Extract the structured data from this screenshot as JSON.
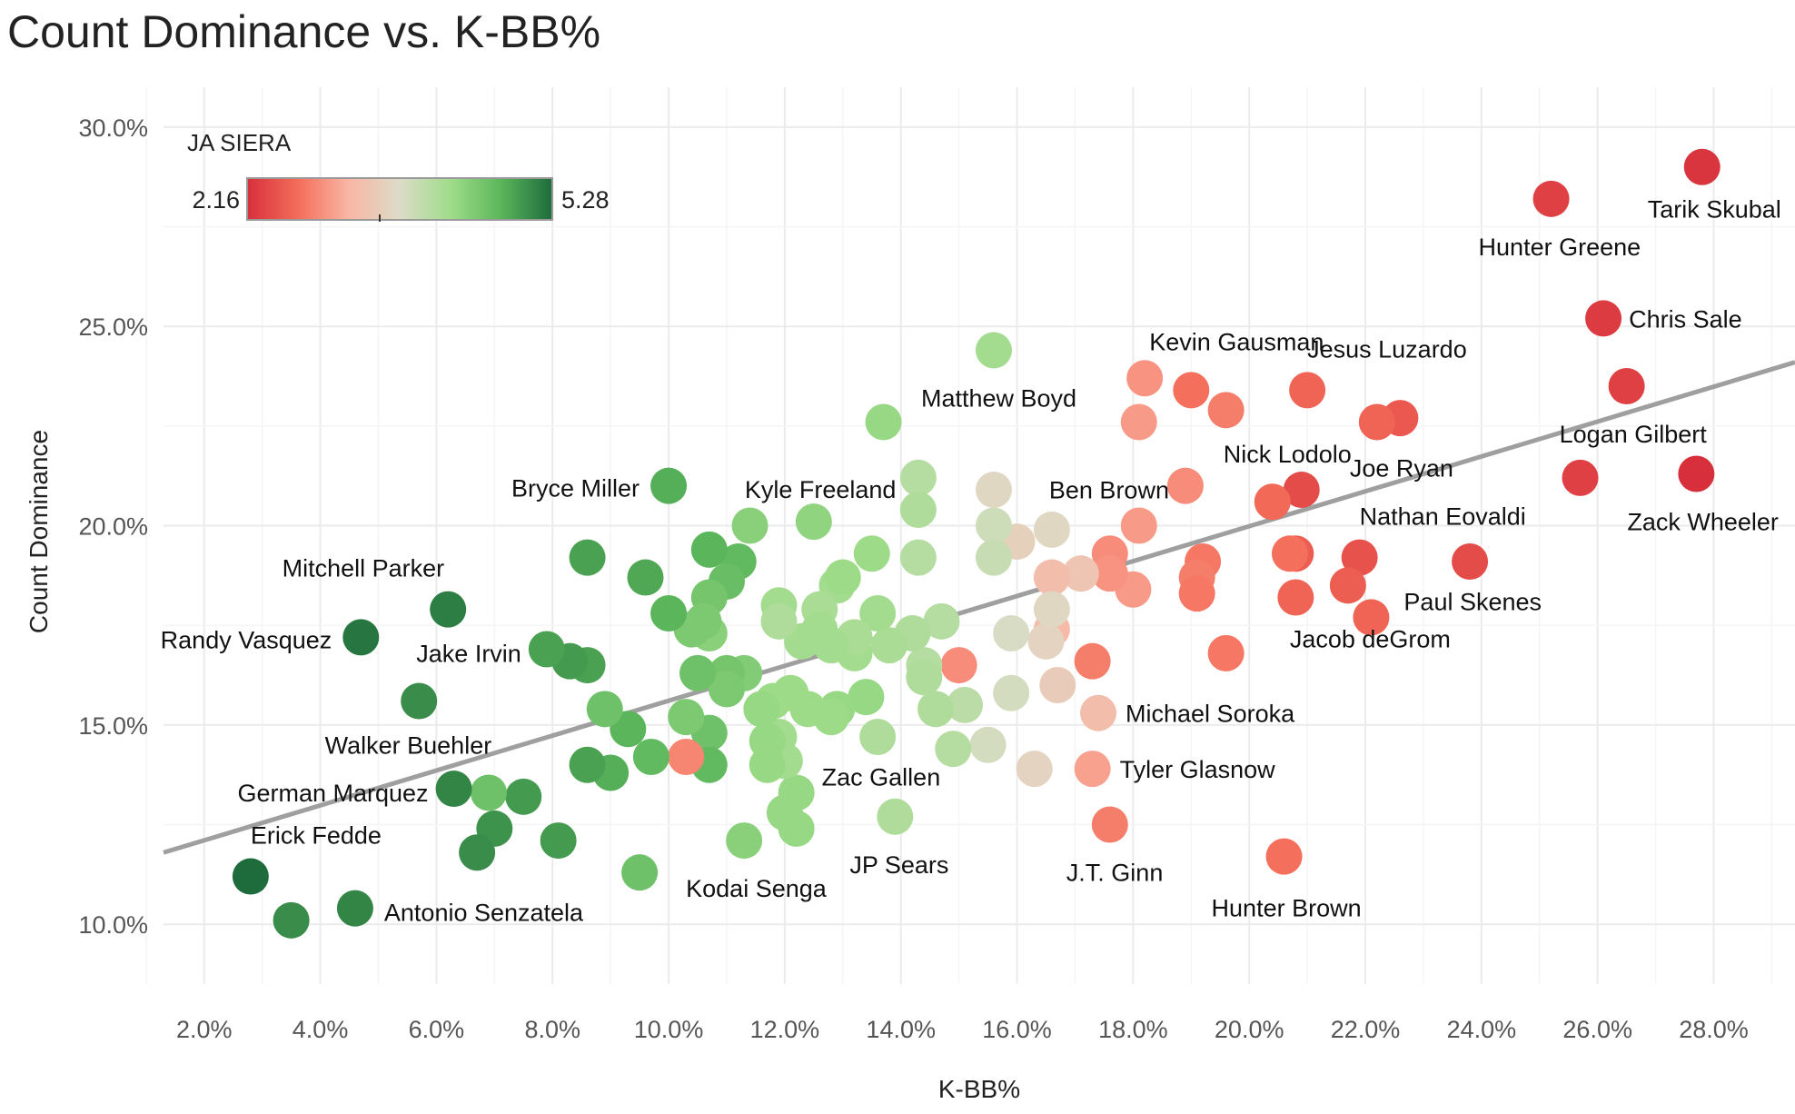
{
  "chart_data": {
    "type": "scatter",
    "title": "Count Dominance vs. K-BB%",
    "xlabel": "K-BB%",
    "ylabel": "Count Dominance",
    "xlim": [
      1.3,
      29.4
    ],
    "ylim": [
      8.5,
      31.0
    ],
    "x_ticks": [
      2,
      4,
      6,
      8,
      10,
      12,
      14,
      16,
      18,
      20,
      22,
      24,
      26,
      28
    ],
    "y_ticks": [
      10,
      15,
      20,
      25,
      30
    ],
    "x_tick_labels": [
      "2.0%",
      "4.0%",
      "6.0%",
      "8.0%",
      "10.0%",
      "12.0%",
      "14.0%",
      "16.0%",
      "18.0%",
      "20.0%",
      "22.0%",
      "24.0%",
      "26.0%",
      "28.0%"
    ],
    "y_tick_labels": [
      "10.0%",
      "15.0%",
      "20.0%",
      "25.0%",
      "30.0%"
    ],
    "grid": true,
    "trendline": {
      "type": "linear",
      "x": [
        1.3,
        29.4
      ],
      "y": [
        11.8,
        24.1
      ],
      "color": "#9a9a9a"
    },
    "color_scale": {
      "title": "JA SIERA",
      "min": 2.16,
      "max": 5.28,
      "min_label": "2.16",
      "max_label": "5.28",
      "stops": [
        "#d7303c",
        "#f46d5a",
        "#f9b6a4",
        "#dcdcc8",
        "#9fdc8a",
        "#5ab55a",
        "#1e6b3c"
      ],
      "legend_position": "top-left"
    },
    "points": [
      {
        "x": 27.8,
        "y": 29.0,
        "siera": 2.2,
        "label": "Tarik Skubal"
      },
      {
        "x": 25.2,
        "y": 28.2,
        "siera": 2.3,
        "label": "Hunter Greene"
      },
      {
        "x": 26.1,
        "y": 25.2,
        "siera": 2.25,
        "label": "Chris Sale"
      },
      {
        "x": 26.5,
        "y": 23.5,
        "siera": 2.3,
        "label": "Logan Gilbert"
      },
      {
        "x": 25.7,
        "y": 21.2,
        "siera": 2.3,
        "label": ""
      },
      {
        "x": 27.7,
        "y": 21.3,
        "siera": 2.16,
        "label": "Zack Wheeler"
      },
      {
        "x": 23.8,
        "y": 19.1,
        "siera": 2.4,
        "label": ""
      },
      {
        "x": 22.1,
        "y": 17.7,
        "siera": 2.6,
        "label": "Paul Skenes"
      },
      {
        "x": 21.9,
        "y": 19.2,
        "siera": 2.45,
        "label": "Nathan Eovaldi"
      },
      {
        "x": 21.7,
        "y": 18.5,
        "siera": 2.55,
        "label": "Jacob deGrom"
      },
      {
        "x": 22.6,
        "y": 22.7,
        "siera": 2.5,
        "label": ""
      },
      {
        "x": 22.2,
        "y": 22.6,
        "siera": 2.6,
        "label": "Joe Ryan"
      },
      {
        "x": 21.0,
        "y": 23.4,
        "siera": 2.6,
        "label": "Jesus Luzardo"
      },
      {
        "x": 20.9,
        "y": 20.9,
        "siera": 2.4,
        "label": "Nick Lodolo"
      },
      {
        "x": 20.4,
        "y": 20.6,
        "siera": 2.65,
        "label": ""
      },
      {
        "x": 20.8,
        "y": 19.3,
        "siera": 2.55,
        "label": ""
      },
      {
        "x": 20.7,
        "y": 19.3,
        "siera": 2.7,
        "label": ""
      },
      {
        "x": 20.8,
        "y": 18.2,
        "siera": 2.6,
        "label": ""
      },
      {
        "x": 20.6,
        "y": 11.7,
        "siera": 2.7,
        "label": "Hunter Brown"
      },
      {
        "x": 19.6,
        "y": 16.8,
        "siera": 2.75,
        "label": ""
      },
      {
        "x": 19.6,
        "y": 22.9,
        "siera": 2.8,
        "label": ""
      },
      {
        "x": 19.0,
        "y": 23.4,
        "siera": 2.7,
        "label": "Kevin Gausman"
      },
      {
        "x": 18.9,
        "y": 21.0,
        "siera": 2.9,
        "label": "Ben Brown"
      },
      {
        "x": 19.2,
        "y": 19.1,
        "siera": 2.75,
        "label": ""
      },
      {
        "x": 19.1,
        "y": 18.7,
        "siera": 2.8,
        "label": ""
      },
      {
        "x": 19.1,
        "y": 18.3,
        "siera": 2.75,
        "label": ""
      },
      {
        "x": 18.2,
        "y": 23.7,
        "siera": 2.95,
        "label": ""
      },
      {
        "x": 18.1,
        "y": 22.6,
        "siera": 3.0,
        "label": ""
      },
      {
        "x": 18.1,
        "y": 20.0,
        "siera": 3.0,
        "label": ""
      },
      {
        "x": 18.0,
        "y": 18.4,
        "siera": 3.0,
        "label": ""
      },
      {
        "x": 17.6,
        "y": 19.3,
        "siera": 2.9,
        "label": ""
      },
      {
        "x": 17.6,
        "y": 18.8,
        "siera": 2.95,
        "label": ""
      },
      {
        "x": 17.3,
        "y": 16.6,
        "siera": 2.8,
        "label": ""
      },
      {
        "x": 17.4,
        "y": 15.3,
        "siera": 3.3,
        "label": "Michael Soroka"
      },
      {
        "x": 17.3,
        "y": 13.9,
        "siera": 3.05,
        "label": "Tyler Glasnow"
      },
      {
        "x": 17.6,
        "y": 12.5,
        "siera": 2.8,
        "label": "J.T. Ginn"
      },
      {
        "x": 17.1,
        "y": 18.8,
        "siera": 3.4,
        "label": ""
      },
      {
        "x": 16.6,
        "y": 18.7,
        "siera": 3.3,
        "label": ""
      },
      {
        "x": 16.6,
        "y": 17.4,
        "siera": 3.25,
        "label": ""
      },
      {
        "x": 16.5,
        "y": 17.1,
        "siera": 3.6,
        "label": ""
      },
      {
        "x": 16.6,
        "y": 17.9,
        "siera": 3.65,
        "label": ""
      },
      {
        "x": 16.7,
        "y": 16.0,
        "siera": 3.5,
        "label": ""
      },
      {
        "x": 16.6,
        "y": 19.9,
        "siera": 3.65,
        "label": ""
      },
      {
        "x": 16.0,
        "y": 19.6,
        "siera": 3.55,
        "label": ""
      },
      {
        "x": 16.3,
        "y": 13.9,
        "siera": 3.6,
        "label": ""
      },
      {
        "x": 15.9,
        "y": 17.3,
        "siera": 3.75,
        "label": ""
      },
      {
        "x": 15.9,
        "y": 15.8,
        "siera": 3.8,
        "label": ""
      },
      {
        "x": 15.6,
        "y": 20.9,
        "siera": 3.65,
        "label": ""
      },
      {
        "x": 15.6,
        "y": 20.0,
        "siera": 3.85,
        "label": ""
      },
      {
        "x": 15.6,
        "y": 19.2,
        "siera": 3.9,
        "label": ""
      },
      {
        "x": 15.6,
        "y": 24.4,
        "siera": 4.2,
        "label": "Matthew Boyd"
      },
      {
        "x": 15.5,
        "y": 14.5,
        "siera": 3.8,
        "label": ""
      },
      {
        "x": 15.0,
        "y": 16.5,
        "siera": 2.9,
        "label": ""
      },
      {
        "x": 15.1,
        "y": 15.5,
        "siera": 4.0,
        "label": ""
      },
      {
        "x": 14.9,
        "y": 14.4,
        "siera": 4.05,
        "label": ""
      },
      {
        "x": 14.7,
        "y": 17.6,
        "siera": 4.05,
        "label": ""
      },
      {
        "x": 14.6,
        "y": 15.4,
        "siera": 4.1,
        "label": ""
      },
      {
        "x": 14.4,
        "y": 16.5,
        "siera": 4.05,
        "label": ""
      },
      {
        "x": 14.4,
        "y": 16.2,
        "siera": 4.1,
        "label": ""
      },
      {
        "x": 14.3,
        "y": 21.2,
        "siera": 4.05,
        "label": ""
      },
      {
        "x": 14.3,
        "y": 20.4,
        "siera": 4.1,
        "label": ""
      },
      {
        "x": 14.3,
        "y": 19.2,
        "siera": 4.05,
        "label": ""
      },
      {
        "x": 14.2,
        "y": 17.3,
        "siera": 4.1,
        "label": ""
      },
      {
        "x": 13.9,
        "y": 12.7,
        "siera": 4.1,
        "label": "JP Sears"
      },
      {
        "x": 13.8,
        "y": 17.0,
        "siera": 4.15,
        "label": ""
      },
      {
        "x": 13.7,
        "y": 22.6,
        "siera": 4.3,
        "label": ""
      },
      {
        "x": 13.6,
        "y": 17.8,
        "siera": 4.2,
        "label": ""
      },
      {
        "x": 13.6,
        "y": 14.7,
        "siera": 4.1,
        "label": ""
      },
      {
        "x": 13.5,
        "y": 19.3,
        "siera": 4.25,
        "label": ""
      },
      {
        "x": 13.4,
        "y": 15.7,
        "siera": 4.3,
        "label": ""
      },
      {
        "x": 13.2,
        "y": 16.8,
        "siera": 4.2,
        "label": ""
      },
      {
        "x": 13.2,
        "y": 17.2,
        "siera": 4.15,
        "label": ""
      },
      {
        "x": 12.9,
        "y": 18.5,
        "siera": 4.2,
        "label": ""
      },
      {
        "x": 13.0,
        "y": 18.7,
        "siera": 4.25,
        "label": ""
      },
      {
        "x": 12.9,
        "y": 15.4,
        "siera": 4.3,
        "label": ""
      },
      {
        "x": 12.8,
        "y": 15.2,
        "siera": 4.25,
        "label": ""
      },
      {
        "x": 12.8,
        "y": 17.0,
        "siera": 4.2,
        "label": ""
      },
      {
        "x": 12.6,
        "y": 17.9,
        "siera": 4.15,
        "label": ""
      },
      {
        "x": 12.6,
        "y": 17.4,
        "siera": 4.2,
        "label": ""
      },
      {
        "x": 12.5,
        "y": 20.1,
        "siera": 4.35,
        "label": "Kyle Freeland"
      },
      {
        "x": 12.4,
        "y": 15.4,
        "siera": 4.25,
        "label": ""
      },
      {
        "x": 12.3,
        "y": 17.1,
        "siera": 4.2,
        "label": ""
      },
      {
        "x": 12.2,
        "y": 12.4,
        "siera": 4.3,
        "label": ""
      },
      {
        "x": 12.2,
        "y": 13.3,
        "siera": 4.3,
        "label": "Zac Gallen"
      },
      {
        "x": 12.1,
        "y": 15.8,
        "siera": 4.25,
        "label": ""
      },
      {
        "x": 12.0,
        "y": 14.1,
        "siera": 4.2,
        "label": ""
      },
      {
        "x": 12.0,
        "y": 12.8,
        "siera": 4.3,
        "label": ""
      },
      {
        "x": 11.9,
        "y": 18.0,
        "siera": 4.2,
        "label": ""
      },
      {
        "x": 11.9,
        "y": 17.6,
        "siera": 4.1,
        "label": ""
      },
      {
        "x": 11.9,
        "y": 14.7,
        "siera": 4.2,
        "label": ""
      },
      {
        "x": 11.8,
        "y": 15.6,
        "siera": 4.25,
        "label": ""
      },
      {
        "x": 11.7,
        "y": 14.0,
        "siera": 4.3,
        "label": ""
      },
      {
        "x": 11.7,
        "y": 14.6,
        "siera": 4.3,
        "label": ""
      },
      {
        "x": 11.6,
        "y": 15.4,
        "siera": 4.3,
        "label": ""
      },
      {
        "x": 11.4,
        "y": 20.0,
        "siera": 4.4,
        "label": ""
      },
      {
        "x": 11.3,
        "y": 16.3,
        "siera": 4.45,
        "label": ""
      },
      {
        "x": 11.3,
        "y": 12.1,
        "siera": 4.4,
        "label": "Kodai Senga"
      },
      {
        "x": 11.2,
        "y": 19.1,
        "siera": 4.7,
        "label": ""
      },
      {
        "x": 11.0,
        "y": 18.6,
        "siera": 4.65,
        "label": ""
      },
      {
        "x": 11.0,
        "y": 16.3,
        "siera": 4.55,
        "label": ""
      },
      {
        "x": 11.0,
        "y": 15.9,
        "siera": 4.5,
        "label": ""
      },
      {
        "x": 10.7,
        "y": 19.4,
        "siera": 4.75,
        "label": ""
      },
      {
        "x": 10.7,
        "y": 18.2,
        "siera": 4.55,
        "label": ""
      },
      {
        "x": 10.7,
        "y": 17.3,
        "siera": 4.4,
        "label": ""
      },
      {
        "x": 10.7,
        "y": 14.8,
        "siera": 4.6,
        "label": ""
      },
      {
        "x": 10.7,
        "y": 14.0,
        "siera": 4.7,
        "label": ""
      },
      {
        "x": 10.6,
        "y": 17.6,
        "siera": 4.5,
        "label": ""
      },
      {
        "x": 10.5,
        "y": 16.3,
        "siera": 4.6,
        "label": ""
      },
      {
        "x": 10.4,
        "y": 17.4,
        "siera": 4.5,
        "label": ""
      },
      {
        "x": 10.3,
        "y": 15.2,
        "siera": 4.5,
        "label": ""
      },
      {
        "x": 10.3,
        "y": 14.2,
        "siera": 2.85,
        "label": ""
      },
      {
        "x": 10.0,
        "y": 21.0,
        "siera": 4.8,
        "label": "Bryce Miller"
      },
      {
        "x": 10.0,
        "y": 17.8,
        "siera": 4.75,
        "label": ""
      },
      {
        "x": 9.7,
        "y": 14.2,
        "siera": 4.7,
        "label": ""
      },
      {
        "x": 9.6,
        "y": 18.7,
        "siera": 4.85,
        "label": ""
      },
      {
        "x": 9.5,
        "y": 11.3,
        "siera": 4.6,
        "label": ""
      },
      {
        "x": 9.3,
        "y": 14.9,
        "siera": 4.75,
        "label": ""
      },
      {
        "x": 9.0,
        "y": 13.8,
        "siera": 4.8,
        "label": ""
      },
      {
        "x": 8.9,
        "y": 15.4,
        "siera": 4.6,
        "label": ""
      },
      {
        "x": 8.6,
        "y": 19.2,
        "siera": 4.9,
        "label": ""
      },
      {
        "x": 8.6,
        "y": 16.5,
        "siera": 4.9,
        "label": ""
      },
      {
        "x": 8.6,
        "y": 14.0,
        "siera": 4.9,
        "label": ""
      },
      {
        "x": 8.3,
        "y": 16.6,
        "siera": 4.95,
        "label": ""
      },
      {
        "x": 8.1,
        "y": 12.1,
        "siera": 4.95,
        "label": ""
      },
      {
        "x": 7.9,
        "y": 16.9,
        "siera": 4.9,
        "label": "Jake Irvin"
      },
      {
        "x": 7.5,
        "y": 13.2,
        "siera": 4.95,
        "label": ""
      },
      {
        "x": 7.0,
        "y": 12.4,
        "siera": 5.0,
        "label": ""
      },
      {
        "x": 6.9,
        "y": 13.3,
        "siera": 4.6,
        "label": ""
      },
      {
        "x": 6.7,
        "y": 11.8,
        "siera": 5.05,
        "label": ""
      },
      {
        "x": 6.2,
        "y": 17.9,
        "siera": 5.15,
        "label": "Mitchell Parker"
      },
      {
        "x": 6.3,
        "y": 13.4,
        "siera": 5.1,
        "label": "German Marquez"
      },
      {
        "x": 5.7,
        "y": 15.6,
        "siera": 5.05,
        "label": "Walker Buehler"
      },
      {
        "x": 4.7,
        "y": 17.2,
        "siera": 5.2,
        "label": "Randy Vasquez"
      },
      {
        "x": 4.6,
        "y": 10.4,
        "siera": 5.1,
        "label": "Antonio Senzatela"
      },
      {
        "x": 3.5,
        "y": 10.1,
        "siera": 5.05,
        "label": ""
      },
      {
        "x": 2.8,
        "y": 11.2,
        "siera": 5.28,
        "label": "Erick Fedde"
      }
    ]
  }
}
